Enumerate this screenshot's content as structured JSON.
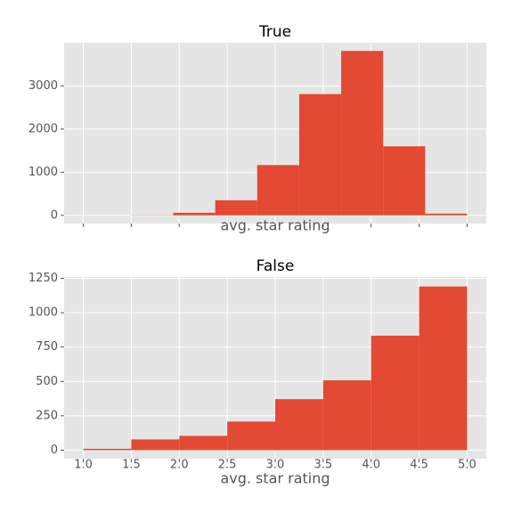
{
  "chart_data": [
    {
      "type": "histogram",
      "title": "True",
      "x_label": "avg. star rating",
      "color": "#e24a33",
      "grid": true,
      "bins": [
        1.5,
        1.9375,
        2.375,
        2.8125,
        3.25,
        3.6875,
        4.125,
        4.5625,
        5.0
      ],
      "values": [
        5,
        60,
        350,
        1165,
        2810,
        3810,
        1600,
        40
      ],
      "xlim": [
        0.8,
        5.2
      ],
      "xticks": [
        1.0,
        1.5,
        2.0,
        2.5,
        3.0,
        3.5,
        4.0,
        4.5,
        5.0
      ],
      "xtick_labels_shown": false,
      "ylim": [
        -190,
        4000
      ],
      "yticks": [
        0,
        1000,
        2000,
        3000
      ]
    },
    {
      "type": "histogram",
      "title": "False",
      "x_label": "avg. star rating",
      "color": "#e24a33",
      "grid": true,
      "bins": [
        1.0,
        1.5,
        2.0,
        2.5,
        3.0,
        3.5,
        4.0,
        4.5,
        5.0
      ],
      "values": [
        10,
        78,
        104,
        208,
        371,
        508,
        833,
        1191
      ],
      "xlim": [
        0.8,
        5.2
      ],
      "xticks": [
        {
          "value": 1,
          "label": "1.0"
        },
        1.5,
        {
          "value": 2,
          "label": "2.0"
        },
        2.5,
        {
          "value": 3,
          "label": "3.0"
        },
        3.5,
        {
          "value": 4,
          "label": "4.0"
        },
        4.5,
        {
          "value": 5,
          "label": "5.0"
        }
      ],
      "xtick_labels_shown": true,
      "ylim": [
        -62,
        1260
      ],
      "yticks": [
        0,
        250,
        500,
        750,
        1000,
        1250
      ]
    }
  ]
}
